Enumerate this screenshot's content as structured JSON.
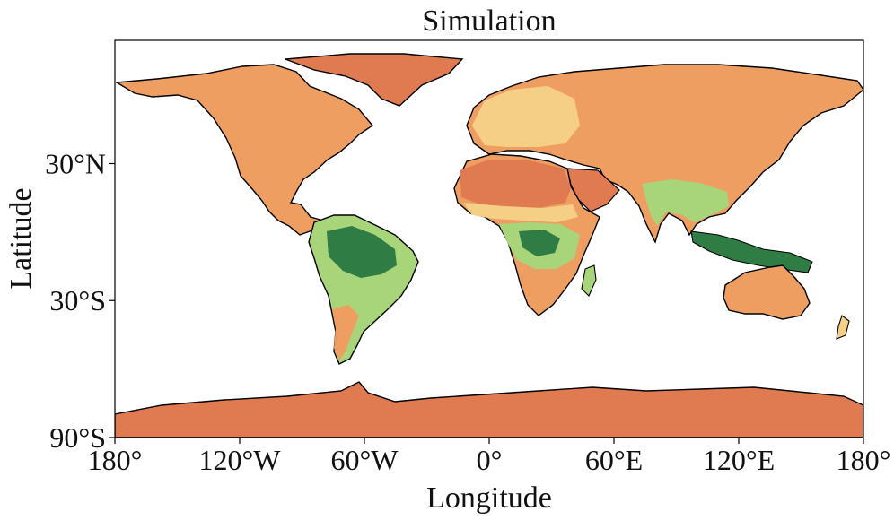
{
  "title": "Simulation",
  "xlabel": "Longitude",
  "ylabel": "Latitude",
  "x_ticks": [
    {
      "value": -180,
      "label": "180°"
    },
    {
      "value": -120,
      "label": "120°W"
    },
    {
      "value": -60,
      "label": "60°W"
    },
    {
      "value": 0,
      "label": "0°"
    },
    {
      "value": 60,
      "label": "60°E"
    },
    {
      "value": 120,
      "label": "120°E"
    },
    {
      "value": 180,
      "label": "180°"
    }
  ],
  "y_ticks": [
    {
      "value": 30,
      "label": "30°N"
    },
    {
      "value": -30,
      "label": "30°S"
    },
    {
      "value": -90,
      "label": "90°S"
    }
  ],
  "colors": {
    "ocean": "#ffffff",
    "arid": "#e07a50",
    "dry": "#ef9e62",
    "semi": "#f6cf86",
    "moderate": "#f2f0b4",
    "green": "#a8d47a",
    "humid": "#4ea45c",
    "wet": "#2f7d45",
    "coast": "#000000"
  },
  "chart_data": {
    "type": "map",
    "projection": "equirectangular",
    "xlim": [
      -180,
      180
    ],
    "ylim": [
      -90,
      84
    ]
  }
}
